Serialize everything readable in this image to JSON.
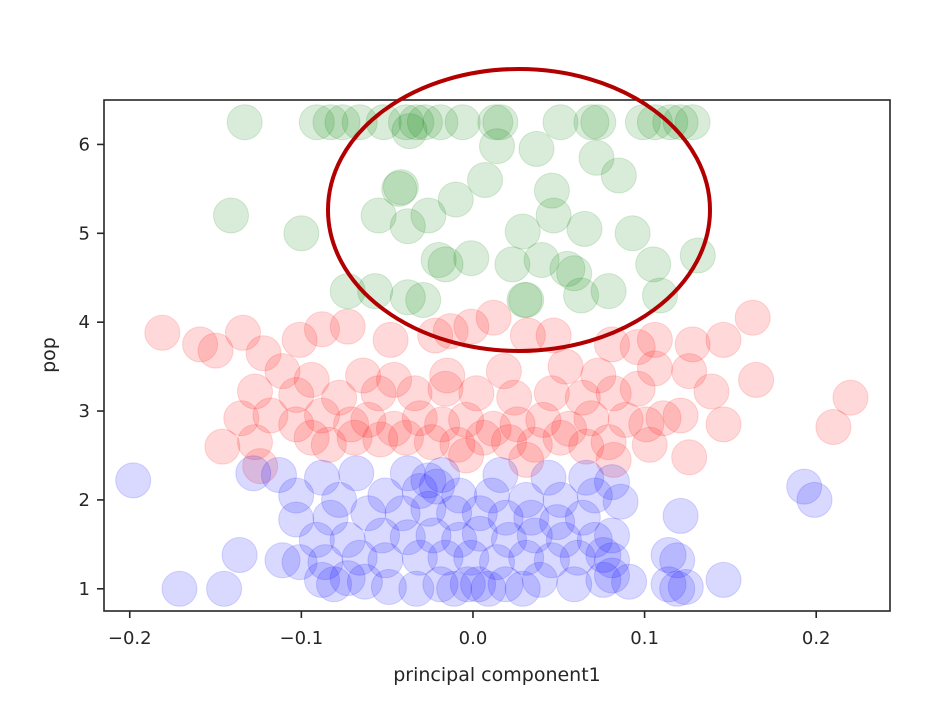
{
  "chart_data": {
    "type": "scatter",
    "xlabel": "principal component1",
    "ylabel": "pop",
    "xlim": [
      -0.215,
      0.243
    ],
    "ylim": [
      0.75,
      6.5
    ],
    "xticks": [
      -0.2,
      -0.1,
      0.0,
      0.1,
      0.2
    ],
    "xtick_labels": [
      "−0.2",
      "−0.1",
      "0.0",
      "0.1",
      "0.2"
    ],
    "yticks": [
      1,
      2,
      3,
      4,
      5,
      6
    ],
    "ytick_labels": [
      "1",
      "2",
      "3",
      "4",
      "5",
      "6"
    ],
    "grid": false,
    "marker_alpha": 0.15,
    "series": [
      {
        "color": "#008000",
        "points": [
          [
            -0.133,
            6.25
          ],
          [
            -0.091,
            6.25
          ],
          [
            -0.083,
            6.25
          ],
          [
            -0.076,
            6.25
          ],
          [
            -0.066,
            6.25
          ],
          [
            -0.052,
            6.25
          ],
          [
            -0.039,
            6.25
          ],
          [
            -0.033,
            6.25
          ],
          [
            -0.028,
            6.25
          ],
          [
            -0.019,
            6.25
          ],
          [
            -0.006,
            6.25
          ],
          [
            0.013,
            6.25
          ],
          [
            0.016,
            6.25
          ],
          [
            0.051,
            6.25
          ],
          [
            0.069,
            6.25
          ],
          [
            0.073,
            6.25
          ],
          [
            0.099,
            6.25
          ],
          [
            0.106,
            6.25
          ],
          [
            0.115,
            6.25
          ],
          [
            0.121,
            6.25
          ],
          [
            0.128,
            6.25
          ],
          [
            -0.037,
            6.15
          ],
          [
            0.014,
            5.98
          ],
          [
            0.037,
            5.95
          ],
          [
            0.072,
            5.85
          ],
          [
            0.085,
            5.65
          ],
          [
            0.007,
            5.6
          ],
          [
            -0.042,
            5.52
          ],
          [
            -0.043,
            5.5
          ],
          [
            0.046,
            5.48
          ],
          [
            -0.141,
            5.2
          ],
          [
            -0.1,
            5.0
          ],
          [
            -0.055,
            5.2
          ],
          [
            -0.026,
            5.2
          ],
          [
            -0.01,
            5.38
          ],
          [
            0.047,
            5.2
          ],
          [
            -0.038,
            5.08
          ],
          [
            0.029,
            5.02
          ],
          [
            0.065,
            5.05
          ],
          [
            0.093,
            5.0
          ],
          [
            0.131,
            4.75
          ],
          [
            -0.02,
            4.7
          ],
          [
            -0.016,
            4.65
          ],
          [
            -0.001,
            4.72
          ],
          [
            0.023,
            4.65
          ],
          [
            0.04,
            4.7
          ],
          [
            0.055,
            4.6
          ],
          [
            0.059,
            4.55
          ],
          [
            0.105,
            4.65
          ],
          [
            -0.073,
            4.35
          ],
          [
            -0.057,
            4.35
          ],
          [
            -0.038,
            4.28
          ],
          [
            -0.029,
            4.25
          ],
          [
            0.031,
            4.25
          ],
          [
            0.063,
            4.3
          ],
          [
            0.079,
            4.35
          ],
          [
            0.109,
            4.3
          ],
          [
            0.03,
            4.25
          ]
        ]
      },
      {
        "color": "#ff0000",
        "points": [
          [
            -0.181,
            3.88
          ],
          [
            -0.159,
            3.75
          ],
          [
            -0.15,
            3.68
          ],
          [
            -0.134,
            3.88
          ],
          [
            -0.122,
            3.65
          ],
          [
            -0.101,
            3.8
          ],
          [
            -0.088,
            3.92
          ],
          [
            -0.073,
            3.95
          ],
          [
            -0.048,
            3.8
          ],
          [
            -0.022,
            3.85
          ],
          [
            -0.013,
            3.9
          ],
          [
            -0.001,
            3.95
          ],
          [
            0.012,
            4.05
          ],
          [
            0.032,
            3.85
          ],
          [
            0.047,
            3.85
          ],
          [
            0.081,
            3.75
          ],
          [
            0.096,
            3.72
          ],
          [
            0.106,
            3.8
          ],
          [
            0.128,
            3.75
          ],
          [
            0.146,
            3.8
          ],
          [
            0.163,
            4.05
          ],
          [
            -0.111,
            3.45
          ],
          [
            -0.094,
            3.35
          ],
          [
            -0.064,
            3.4
          ],
          [
            -0.046,
            3.35
          ],
          [
            -0.015,
            3.4
          ],
          [
            0.018,
            3.45
          ],
          [
            0.054,
            3.5
          ],
          [
            0.073,
            3.4
          ],
          [
            0.106,
            3.48
          ],
          [
            0.126,
            3.45
          ],
          [
            0.165,
            3.35
          ],
          [
            -0.127,
            3.22
          ],
          [
            -0.103,
            3.18
          ],
          [
            -0.078,
            3.15
          ],
          [
            -0.055,
            3.2
          ],
          [
            -0.034,
            3.2
          ],
          [
            -0.016,
            3.25
          ],
          [
            0.002,
            3.2
          ],
          [
            0.024,
            3.15
          ],
          [
            0.046,
            3.2
          ],
          [
            0.064,
            3.15
          ],
          [
            0.082,
            3.2
          ],
          [
            0.096,
            3.25
          ],
          [
            0.139,
            3.22
          ],
          [
            0.22,
            3.15
          ],
          [
            -0.135,
            2.92
          ],
          [
            -0.118,
            2.95
          ],
          [
            -0.103,
            2.85
          ],
          [
            -0.088,
            2.95
          ],
          [
            -0.071,
            2.85
          ],
          [
            -0.061,
            2.9
          ],
          [
            -0.046,
            2.8
          ],
          [
            -0.031,
            2.92
          ],
          [
            -0.018,
            2.85
          ],
          [
            -0.004,
            2.9
          ],
          [
            0.012,
            2.8
          ],
          [
            0.026,
            2.85
          ],
          [
            0.041,
            2.9
          ],
          [
            0.056,
            2.8
          ],
          [
            0.069,
            2.92
          ],
          [
            0.089,
            2.9
          ],
          [
            0.101,
            2.85
          ],
          [
            0.111,
            2.92
          ],
          [
            0.121,
            2.95
          ],
          [
            0.146,
            2.85
          ],
          [
            0.21,
            2.82
          ],
          [
            -0.146,
            2.6
          ],
          [
            -0.127,
            2.65
          ],
          [
            -0.094,
            2.7
          ],
          [
            -0.084,
            2.62
          ],
          [
            -0.069,
            2.7
          ],
          [
            -0.054,
            2.68
          ],
          [
            -0.039,
            2.7
          ],
          [
            -0.024,
            2.65
          ],
          [
            -0.009,
            2.62
          ],
          [
            0.006,
            2.7
          ],
          [
            0.021,
            2.65
          ],
          [
            0.036,
            2.62
          ],
          [
            0.051,
            2.7
          ],
          [
            0.066,
            2.6
          ],
          [
            0.079,
            2.65
          ],
          [
            0.103,
            2.62
          ],
          [
            0.126,
            2.48
          ],
          [
            -0.004,
            2.5
          ],
          [
            0.031,
            2.45
          ],
          [
            -0.124,
            2.38
          ],
          [
            0.082,
            2.45
          ]
        ]
      },
      {
        "color": "#0000ff",
        "points": [
          [
            -0.198,
            2.22
          ],
          [
            -0.128,
            2.3
          ],
          [
            -0.113,
            2.28
          ],
          [
            -0.088,
            2.25
          ],
          [
            -0.068,
            2.3
          ],
          [
            -0.038,
            2.3
          ],
          [
            -0.026,
            2.22
          ],
          [
            -0.018,
            2.28
          ],
          [
            0.016,
            2.28
          ],
          [
            0.044,
            2.25
          ],
          [
            0.066,
            2.25
          ],
          [
            0.081,
            2.2
          ],
          [
            0.193,
            2.15
          ],
          [
            0.199,
            2.0
          ],
          [
            -0.103,
            2.05
          ],
          [
            -0.078,
            2.0
          ],
          [
            -0.051,
            2.05
          ],
          [
            -0.031,
            2.1
          ],
          [
            -0.021,
            2.15
          ],
          [
            -0.008,
            2.05
          ],
          [
            0.011,
            2.05
          ],
          [
            0.031,
            2.0
          ],
          [
            0.051,
            2.0
          ],
          [
            0.071,
            2.05
          ],
          [
            0.086,
            1.98
          ],
          [
            0.121,
            1.82
          ],
          [
            -0.103,
            1.78
          ],
          [
            -0.083,
            1.8
          ],
          [
            -0.061,
            1.85
          ],
          [
            -0.041,
            1.85
          ],
          [
            -0.026,
            1.9
          ],
          [
            -0.011,
            1.85
          ],
          [
            0.004,
            1.85
          ],
          [
            0.019,
            1.8
          ],
          [
            0.034,
            1.8
          ],
          [
            0.049,
            1.75
          ],
          [
            0.064,
            1.8
          ],
          [
            -0.091,
            1.55
          ],
          [
            -0.073,
            1.55
          ],
          [
            -0.053,
            1.6
          ],
          [
            -0.038,
            1.58
          ],
          [
            -0.023,
            1.6
          ],
          [
            -0.008,
            1.55
          ],
          [
            0.004,
            1.62
          ],
          [
            0.021,
            1.55
          ],
          [
            0.036,
            1.6
          ],
          [
            0.053,
            1.55
          ],
          [
            0.071,
            1.55
          ],
          [
            0.081,
            1.6
          ],
          [
            -0.136,
            1.38
          ],
          [
            -0.111,
            1.32
          ],
          [
            -0.101,
            1.3
          ],
          [
            -0.086,
            1.3
          ],
          [
            -0.066,
            1.35
          ],
          [
            -0.051,
            1.32
          ],
          [
            -0.031,
            1.35
          ],
          [
            -0.016,
            1.35
          ],
          [
            -0.001,
            1.35
          ],
          [
            0.014,
            1.3
          ],
          [
            0.031,
            1.35
          ],
          [
            0.046,
            1.32
          ],
          [
            0.061,
            1.35
          ],
          [
            0.076,
            1.38
          ],
          [
            0.081,
            1.32
          ],
          [
            0.114,
            1.38
          ],
          [
            0.119,
            1.32
          ],
          [
            -0.171,
            1.0
          ],
          [
            -0.145,
            1.0
          ],
          [
            -0.088,
            1.1
          ],
          [
            -0.081,
            1.05
          ],
          [
            -0.073,
            1.12
          ],
          [
            -0.063,
            1.08
          ],
          [
            -0.049,
            1.02
          ],
          [
            -0.033,
            1.0
          ],
          [
            -0.019,
            1.05
          ],
          [
            -0.011,
            1.0
          ],
          [
            -0.003,
            1.05
          ],
          [
            0.003,
            1.05
          ],
          [
            0.009,
            1.0
          ],
          [
            0.019,
            1.05
          ],
          [
            0.029,
            1.0
          ],
          [
            0.039,
            1.1
          ],
          [
            0.059,
            1.05
          ],
          [
            0.076,
            1.1
          ],
          [
            0.081,
            1.15
          ],
          [
            0.091,
            1.08
          ],
          [
            0.114,
            1.05
          ],
          [
            0.119,
            1.0
          ],
          [
            0.124,
            1.02
          ],
          [
            0.146,
            1.1
          ]
        ]
      }
    ]
  },
  "annotation": {
    "color": "#b20000"
  }
}
